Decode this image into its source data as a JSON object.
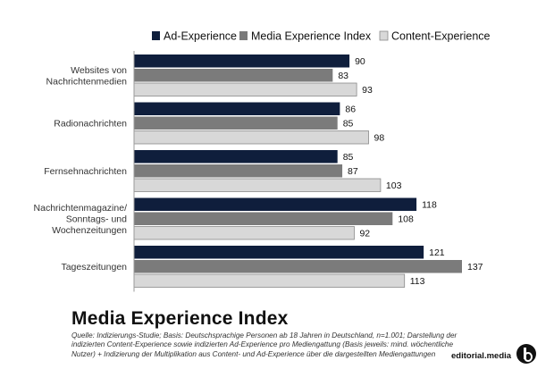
{
  "chart_data": {
    "type": "bar",
    "orientation": "horizontal",
    "title": "Media Experience Index",
    "categories": [
      [
        "Websites von",
        "Nachrichtenmedien"
      ],
      [
        "Radionachrichten"
      ],
      [
        "Fernsehnachrichten"
      ],
      [
        "Nachrichtenmagazine/",
        "Sonntags- und",
        "Wochenzeitungen"
      ],
      [
        "Tageszeitungen"
      ]
    ],
    "series": [
      {
        "name": "Ad-Experience",
        "color": "#0f1e3c",
        "values": [
          90,
          86,
          85,
          118,
          121
        ]
      },
      {
        "name": "Media Experience Index",
        "color": "#7b7b7b",
        "values": [
          83,
          85,
          87,
          108,
          137
        ]
      },
      {
        "name": "Content-Experience",
        "color": "#d8d8d8",
        "values": [
          93,
          98,
          103,
          92,
          113
        ]
      }
    ],
    "xlim": [
      0,
      137
    ],
    "grid": false,
    "legend_position": "top-right"
  },
  "footer": {
    "source": "Quelle: Indizierungs-Studie; Basis: Deutschsprachige Personen ab 18 Jahren in Deutschland, n=1.001; Darstellung der indizierten Content-Experience sowie indizierten Ad-Experience pro Mediengattung (Basis jeweils: mind. wöchentliche Nutzer) + Indizierung der Multiplikation aus Content- und Ad-Experience über die dargestellten Mediengattungen",
    "brand": "editorial.media",
    "logo_icon": "editorial-media-logo-icon"
  }
}
